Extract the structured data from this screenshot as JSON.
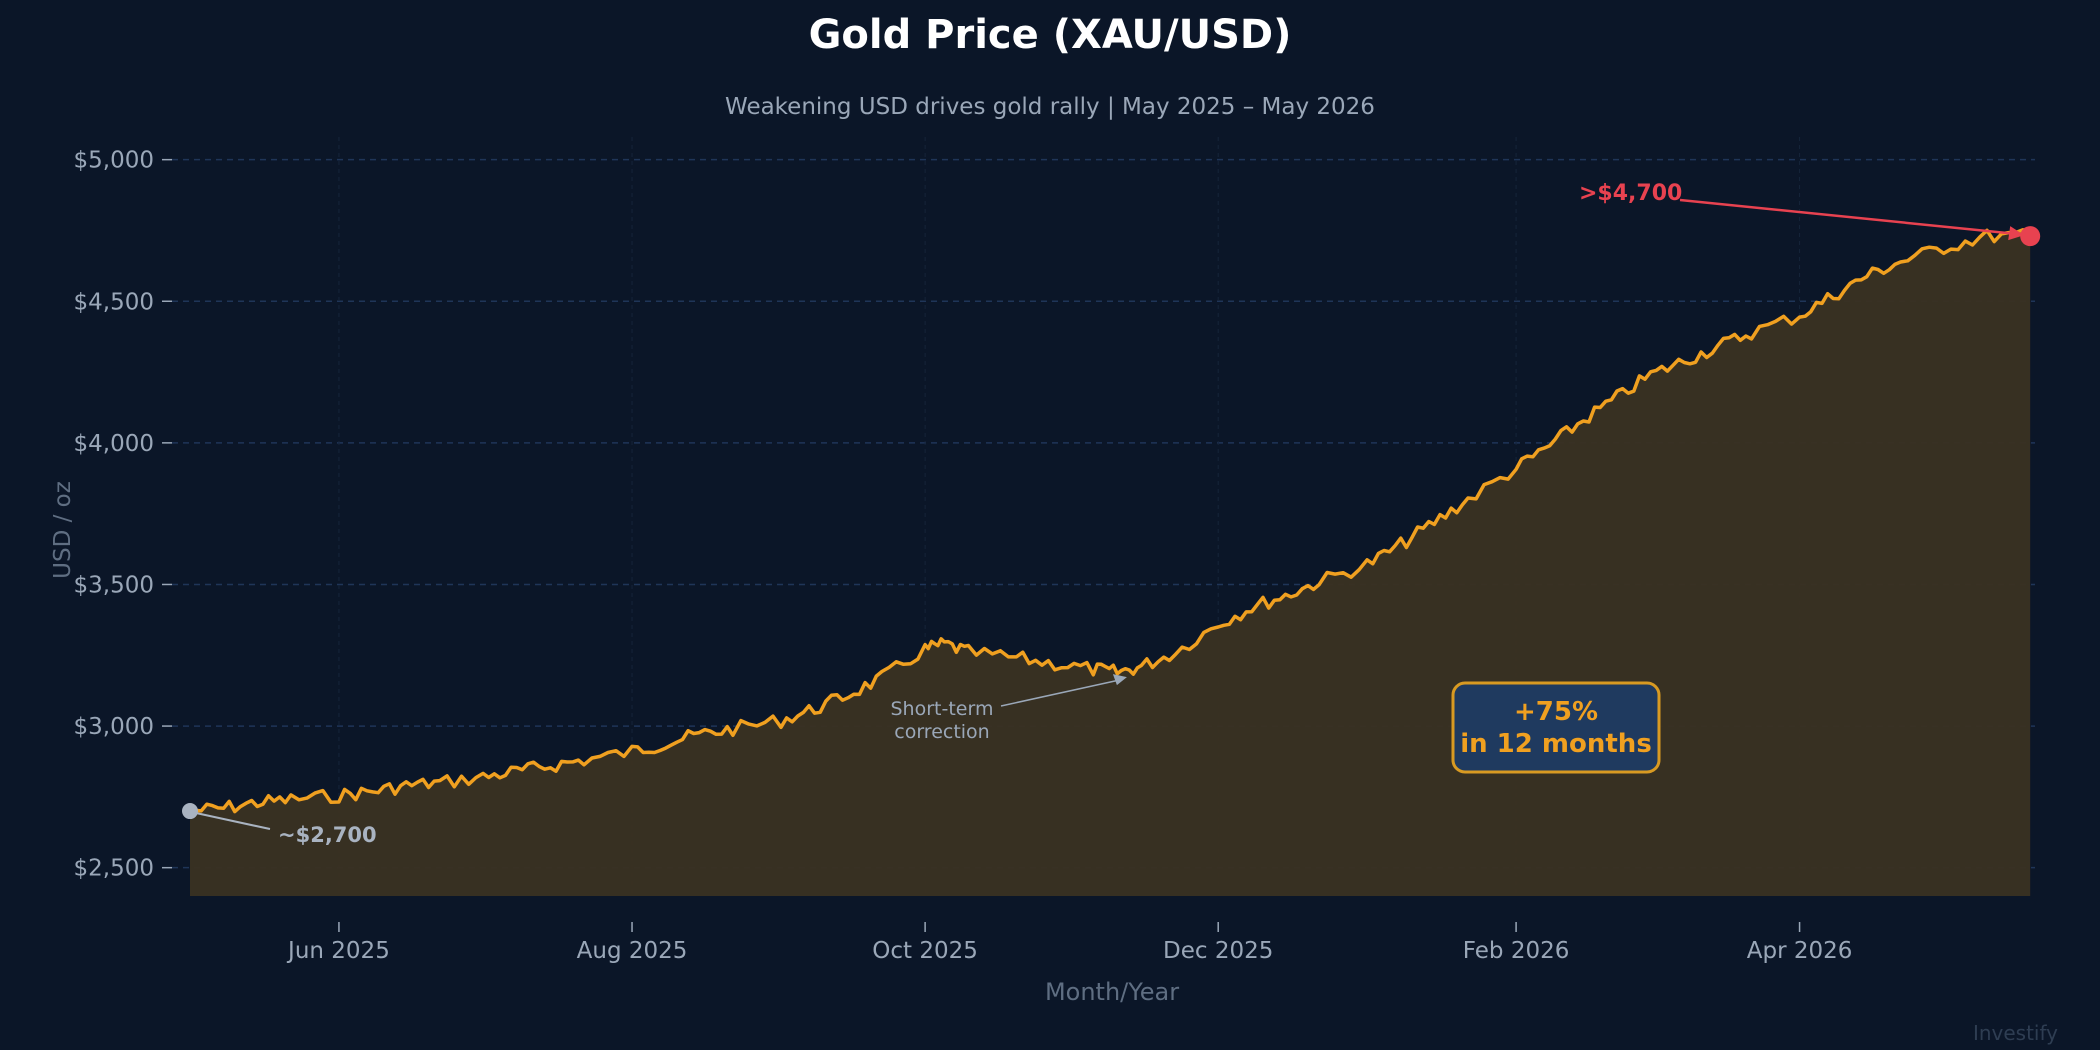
{
  "chart_data": {
    "type": "area",
    "title": "Gold Price (XAU/USD)",
    "subtitle": "Weakening USD drives gold rally | May 2025 – May 2026",
    "xlabel": "Month/Year",
    "ylabel": "USD / oz",
    "ylim": [
      2400,
      5080
    ],
    "xlim": [
      "2025-05-01",
      "2026-05-20"
    ],
    "yticks": [
      {
        "value": 2500,
        "label": "$2,500"
      },
      {
        "value": 3000,
        "label": "$3,000"
      },
      {
        "value": 3500,
        "label": "$3,500"
      },
      {
        "value": 4000,
        "label": "$4,000"
      },
      {
        "value": 4500,
        "label": "$4,500"
      },
      {
        "value": 5000,
        "label": "$5,000"
      }
    ],
    "xticks": [
      {
        "date": "2025-06-01",
        "label": "Jun 2025"
      },
      {
        "date": "2025-08-01",
        "label": "Aug 2025"
      },
      {
        "date": "2025-10-01",
        "label": "Oct 2025"
      },
      {
        "date": "2025-12-01",
        "label": "Dec 2025"
      },
      {
        "date": "2026-02-01",
        "label": "Feb 2026"
      },
      {
        "date": "2026-04-01",
        "label": "Apr 2026"
      }
    ],
    "grid": true,
    "series": [
      {
        "color": "#f0a020",
        "fill": "#3a3222",
        "points": [
          [
            "2025-05-01",
            2700
          ],
          [
            "2025-05-08",
            2710
          ],
          [
            "2025-05-15",
            2730
          ],
          [
            "2025-05-22",
            2740
          ],
          [
            "2025-06-01",
            2755
          ],
          [
            "2025-06-08",
            2770
          ],
          [
            "2025-06-15",
            2790
          ],
          [
            "2025-06-22",
            2800
          ],
          [
            "2025-07-01",
            2820
          ],
          [
            "2025-07-08",
            2840
          ],
          [
            "2025-07-15",
            2860
          ],
          [
            "2025-07-22",
            2880
          ],
          [
            "2025-08-01",
            2910
          ],
          [
            "2025-08-08",
            2940
          ],
          [
            "2025-08-15",
            2970
          ],
          [
            "2025-08-22",
            2990
          ],
          [
            "2025-09-01",
            3020
          ],
          [
            "2025-09-08",
            3060
          ],
          [
            "2025-09-15",
            3110
          ],
          [
            "2025-09-22",
            3170
          ],
          [
            "2025-10-01",
            3270
          ],
          [
            "2025-10-05",
            3290
          ],
          [
            "2025-10-10",
            3260
          ],
          [
            "2025-10-20",
            3240
          ],
          [
            "2025-10-28",
            3220
          ],
          [
            "2025-11-05",
            3200
          ],
          [
            "2025-11-10",
            3190
          ],
          [
            "2025-11-15",
            3210
          ],
          [
            "2025-11-22",
            3260
          ],
          [
            "2025-12-01",
            3360
          ],
          [
            "2025-12-08",
            3420
          ],
          [
            "2025-12-15",
            3460
          ],
          [
            "2025-12-22",
            3510
          ],
          [
            "2026-01-01",
            3570
          ],
          [
            "2026-01-08",
            3640
          ],
          [
            "2026-01-15",
            3720
          ],
          [
            "2026-01-22",
            3800
          ],
          [
            "2026-02-01",
            3910
          ],
          [
            "2026-02-08",
            3990
          ],
          [
            "2026-02-15",
            4080
          ],
          [
            "2026-02-22",
            4160
          ],
          [
            "2026-03-01",
            4240
          ],
          [
            "2026-03-08",
            4290
          ],
          [
            "2026-03-15",
            4340
          ],
          [
            "2026-03-22",
            4390
          ],
          [
            "2026-04-01",
            4450
          ],
          [
            "2026-04-08",
            4520
          ],
          [
            "2026-04-15",
            4590
          ],
          [
            "2026-04-22",
            4640
          ],
          [
            "2026-05-01",
            4690
          ],
          [
            "2026-05-10",
            4730
          ],
          [
            "2026-05-19",
            4730
          ]
        ]
      }
    ],
    "annotations": {
      "start": {
        "label": "~$2,700",
        "date": "2025-05-01",
        "value": 2700
      },
      "end": {
        "label": ">$4,700",
        "date": "2026-05-19",
        "value": 4730
      },
      "correction": {
        "line1": "Short-term",
        "line2": "correction",
        "date": "2025-11-12",
        "value": 3180
      },
      "callout": {
        "line1": "+75%",
        "line2": "in 12 months"
      }
    },
    "watermark": "Investify"
  },
  "colors": {
    "background": "#0b1628",
    "line": "#f0a020",
    "area": "#3a3222",
    "grid": "#1f3558",
    "tick_text": "#9aa7b8",
    "axis_label": "#5f6e82",
    "end_marker": "#e84250",
    "start_marker": "#a9b3c1",
    "callout_bg": "#1f3a5f",
    "callout_border": "#d89a22"
  }
}
